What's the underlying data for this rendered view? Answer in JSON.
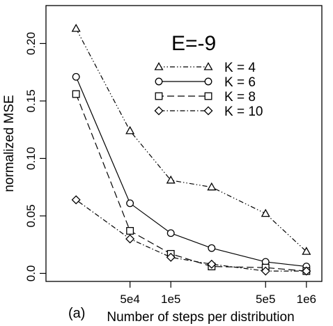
{
  "chart_data": {
    "type": "line",
    "annotation": "E=-9",
    "panel_label": "(a)",
    "xlabel": "Number of steps per distribution",
    "ylabel": "normalized MSE",
    "x_scale": "log",
    "x": [
      20000,
      50000,
      100000,
      200000,
      500000,
      1000000
    ],
    "x_ticks": [
      {
        "value": 50000,
        "label": "5e4"
      },
      {
        "value": 100000,
        "label": "1e5"
      },
      {
        "value": 500000,
        "label": "5e5"
      },
      {
        "value": 1000000,
        "label": "1e6"
      }
    ],
    "ylim": [
      -0.007,
      0.233
    ],
    "y_ticks": [
      {
        "value": 0.0,
        "label": "0.0"
      },
      {
        "value": 0.05,
        "label": "0.05"
      },
      {
        "value": 0.1,
        "label": "0.10"
      },
      {
        "value": 0.15,
        "label": "0.15"
      },
      {
        "value": 0.2,
        "label": "0.20"
      }
    ],
    "grid": false,
    "legend_position": "top-right",
    "series": [
      {
        "name": "K = 4",
        "marker": "triangle",
        "dash": "dashdotdot",
        "values": [
          0.213,
          0.124,
          0.081,
          0.075,
          0.052,
          0.019
        ]
      },
      {
        "name": "K = 6",
        "marker": "circle",
        "dash": "solid",
        "values": [
          0.171,
          0.061,
          0.035,
          0.022,
          0.01,
          0.006
        ]
      },
      {
        "name": "K = 8",
        "marker": "square",
        "dash": "dashed",
        "values": [
          0.156,
          0.037,
          0.017,
          0.006,
          0.005,
          0.002
        ]
      },
      {
        "name": "K = 10",
        "marker": "diamond",
        "dash": "dotdash",
        "values": [
          0.064,
          0.03,
          0.014,
          0.008,
          0.002,
          0.002
        ]
      }
    ]
  }
}
